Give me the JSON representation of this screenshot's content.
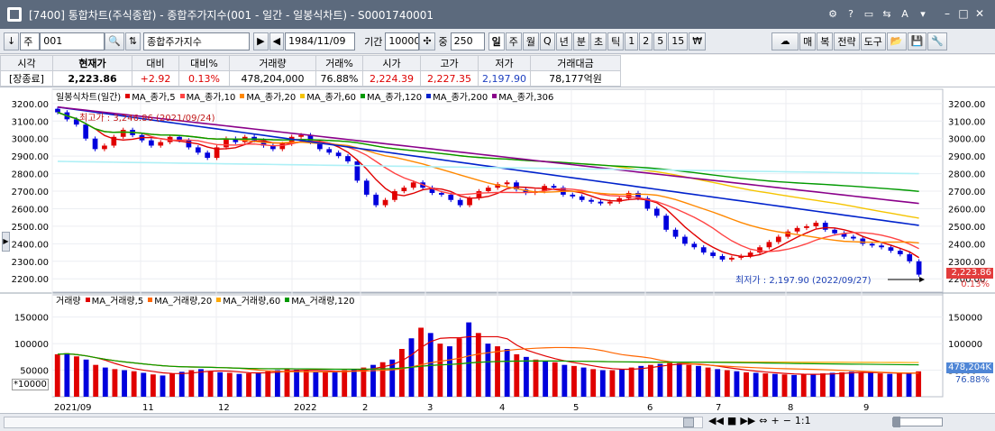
{
  "window": {
    "title": "[7400] 통합차트(주식종합) - 종합주가지수(001 - 일간 - 일봉식차트) - S0001740001"
  },
  "toolbar": {
    "market": "주",
    "code": "001",
    "name": "종합주가지수",
    "date": "1984/11/09",
    "period_label": "기간",
    "period_value": "10000",
    "jung_label": "중",
    "jung_value": "250",
    "intervals": [
      "일",
      "주",
      "월",
      "Q",
      "년",
      "분",
      "초",
      "틱",
      "1",
      "2",
      "5",
      "15",
      "₩"
    ],
    "selected_interval": "일",
    "right_buttons": [
      "매",
      "복",
      "전략",
      "도구"
    ]
  },
  "quote": {
    "headers": [
      "시각",
      "현재가",
      "대비",
      "대비%",
      "거래량",
      "거래%",
      "시가",
      "고가",
      "저가",
      "거래대금"
    ],
    "values": [
      "[장종료]",
      "2,223.86",
      "+2.92",
      "0.13%",
      "478,204,000",
      "76.88%",
      "2,224.39",
      "2,227.35",
      "2,197.90",
      "78,177억원"
    ]
  },
  "chart_data": [
    {
      "type": "candlestick",
      "title": "일봉식차트(일간)",
      "x_ticks": [
        "2021/09",
        "11",
        "12",
        "2022",
        "2",
        "3",
        "4",
        "5",
        "6",
        "7",
        "8",
        "9"
      ],
      "y_ticks": [
        2200,
        2300,
        2400,
        2500,
        2600,
        2700,
        2800,
        2900,
        3000,
        3100,
        3200
      ],
      "ylim": [
        2160,
        3230
      ],
      "legend": [
        "MA_종가,5",
        "MA_종가,10",
        "MA_종가,20",
        "MA_종가,60",
        "MA_종가,120",
        "MA_종가,200",
        "MA_종가,306"
      ],
      "colors": {
        "up": "#e00000",
        "down": "#0000dd",
        "ma5": "#e00000",
        "ma10": "#ff4444",
        "ma20": "#ff8800",
        "ma60": "#f5c400",
        "ma120": "#009900",
        "ma200": "#0022cc",
        "ma306": "#8a008a",
        "ma_long": "#aef0f6"
      },
      "closes_approx": [
        3150,
        3110,
        3080,
        3000,
        2940,
        2960,
        3010,
        3050,
        3020,
        2990,
        2960,
        2980,
        3010,
        2990,
        2950,
        2920,
        2890,
        2950,
        3000,
        2980,
        3010,
        2990,
        2960,
        2940,
        2970,
        3010,
        3020,
        2980,
        2940,
        2920,
        2900,
        2870,
        2760,
        2680,
        2620,
        2650,
        2700,
        2720,
        2750,
        2720,
        2690,
        2680,
        2650,
        2620,
        2660,
        2700,
        2720,
        2740,
        2750,
        2710,
        2690,
        2700,
        2730,
        2720,
        2680,
        2670,
        2650,
        2640,
        2630,
        2640,
        2660,
        2690,
        2660,
        2600,
        2560,
        2480,
        2440,
        2400,
        2380,
        2350,
        2330,
        2310,
        2320,
        2330,
        2350,
        2380,
        2410,
        2440,
        2470,
        2490,
        2500,
        2520,
        2480,
        2460,
        2440,
        2430,
        2400,
        2390,
        2380,
        2360,
        2340,
        2300,
        2223.86
      ],
      "last_value": "2,223.86",
      "last_change_pct": "0.13%",
      "high_label": "최고가 : 3,246.86 (2021/09/24)",
      "low_label": "최저가 : 2,197.90 (2022/09/27)"
    },
    {
      "type": "bar",
      "title": "거래량",
      "legend": [
        "MA_거래량,5",
        "MA_거래량,20",
        "MA_거래량,60",
        "MA_거래량,120"
      ],
      "y_ticks": [
        50000,
        100000,
        150000
      ],
      "ylim": [
        0,
        180000
      ],
      "unit": "*10000",
      "values_approx": [
        80000,
        82000,
        76000,
        70000,
        60000,
        55000,
        52000,
        50000,
        48000,
        45000,
        42000,
        40000,
        44000,
        47000,
        50000,
        52000,
        48000,
        46000,
        45000,
        43000,
        44000,
        46000,
        48000,
        50000,
        52000,
        51000,
        49000,
        47000,
        46000,
        48000,
        50000,
        52000,
        55000,
        60000,
        65000,
        70000,
        90000,
        110000,
        130000,
        120000,
        100000,
        95000,
        110000,
        140000,
        120000,
        100000,
        95000,
        90000,
        80000,
        75000,
        70000,
        68000,
        65000,
        60000,
        58000,
        55000,
        52000,
        50000,
        50000,
        52000,
        55000,
        58000,
        60000,
        62000,
        64000,
        63000,
        60000,
        58000,
        55000,
        52000,
        50000,
        48000,
        46000,
        45000,
        44000,
        43000,
        42000,
        41000,
        42000,
        43000,
        44000,
        45000,
        46000,
        47000,
        46000,
        45000,
        44000,
        43000,
        44000,
        45000,
        47834
      ],
      "last_value": "478,204K",
      "last_pct": "76.88%"
    }
  ]
}
